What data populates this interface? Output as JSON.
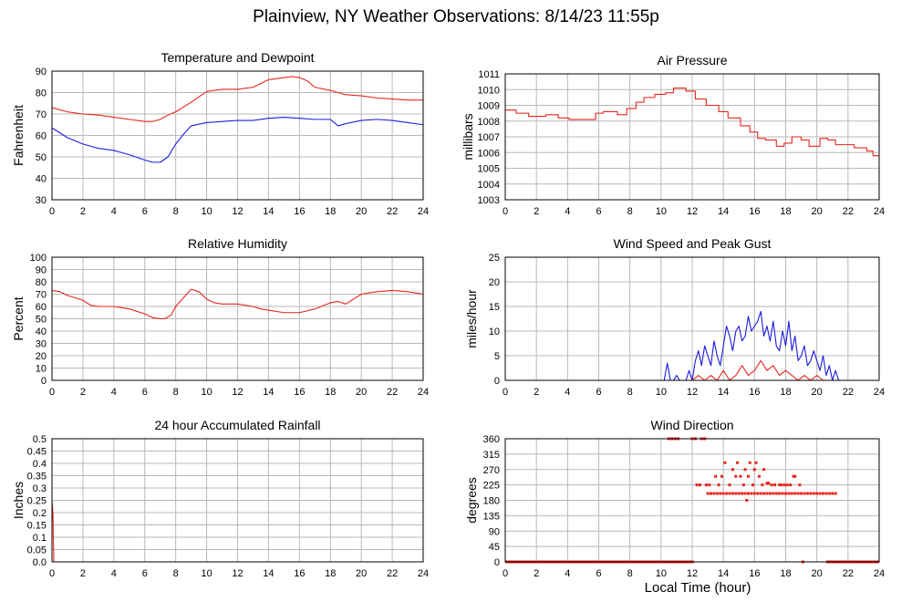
{
  "page": {
    "title": "Plainview, NY Weather Observations: 8/14/23 11:55p",
    "x_axis_caption": "Local Time (hour)"
  },
  "colors": {
    "grid": "#b8b8b8",
    "red": "#e8251c",
    "blue": "#1c1ce0"
  },
  "x_ticks": [
    "0",
    "2",
    "4",
    "6",
    "8",
    "10",
    "12",
    "14",
    "16",
    "18",
    "20",
    "22",
    "24"
  ],
  "chart_data": [
    {
      "id": "temp",
      "type": "line",
      "title": "Temperature and Dewpoint",
      "ylabel": "Fahrenheit",
      "xlabel": "",
      "xlim": [
        0,
        24
      ],
      "ylim": [
        30,
        90
      ],
      "y_ticks": [
        "30",
        "40",
        "50",
        "60",
        "70",
        "80",
        "90"
      ],
      "grid": true,
      "series": [
        {
          "color": "red",
          "x": [
            0,
            1,
            2,
            3,
            4,
            5,
            6,
            6.5,
            7,
            7.5,
            8,
            9,
            10,
            11,
            12,
            13,
            14,
            15,
            15.5,
            16,
            16.5,
            17,
            18,
            19,
            20,
            21,
            22,
            23,
            24
          ],
          "y": [
            73,
            71,
            70,
            69.5,
            68.5,
            67.5,
            66.5,
            66.5,
            67.5,
            69.5,
            71,
            75.5,
            80.5,
            81.5,
            81.5,
            82.5,
            86,
            87,
            87.5,
            87,
            85.5,
            82.5,
            81,
            79,
            78.5,
            77.5,
            77,
            76.5,
            76.5
          ]
        },
        {
          "color": "blue",
          "x": [
            0,
            1,
            2,
            3,
            4,
            5,
            6,
            6.5,
            7,
            7.5,
            8,
            8.5,
            9,
            10,
            11,
            12,
            13,
            14,
            15,
            16,
            17,
            18,
            18.5,
            19,
            20,
            21,
            22,
            23,
            24
          ],
          "y": [
            63.5,
            59,
            56,
            54,
            53,
            51,
            48.5,
            47.5,
            47.5,
            50,
            56,
            60.5,
            64.5,
            66,
            66.5,
            67,
            67,
            68,
            68.5,
            68,
            67.5,
            67.5,
            64.5,
            65.5,
            67,
            67.5,
            67,
            66,
            65
          ]
        }
      ]
    },
    {
      "id": "pressure",
      "type": "line",
      "title": "Air Pressure",
      "ylabel": "millibars",
      "xlabel": "",
      "xlim": [
        0,
        24
      ],
      "ylim": [
        1003,
        1011
      ],
      "y_ticks": [
        "1003",
        "1004",
        "1005",
        "1006",
        "1007",
        "1008",
        "1009",
        "1010",
        "1011"
      ],
      "grid": true,
      "series": [
        {
          "color": "red",
          "step": true,
          "x": [
            0,
            0.7,
            1.5,
            2.6,
            3.4,
            4.1,
            5.8,
            6.3,
            7.2,
            7.8,
            8.4,
            8.9,
            9.6,
            10.3,
            10.8,
            11.6,
            12.2,
            12.9,
            13.7,
            14.3,
            15.1,
            15.7,
            16.2,
            16.7,
            17.4,
            17.9,
            18.4,
            19.0,
            19.5,
            20.2,
            20.7,
            21.2,
            21.8,
            22.4,
            23.2,
            23.6,
            24
          ],
          "y": [
            1008.7,
            1008.5,
            1008.3,
            1008.4,
            1008.2,
            1008.1,
            1008.5,
            1008.6,
            1008.4,
            1008.8,
            1009.2,
            1009.5,
            1009.7,
            1009.8,
            1010.1,
            1009.9,
            1009.4,
            1009.0,
            1008.6,
            1008.2,
            1007.7,
            1007.3,
            1006.9,
            1006.8,
            1006.4,
            1006.6,
            1007.0,
            1006.8,
            1006.4,
            1006.9,
            1006.8,
            1006.5,
            1006.5,
            1006.3,
            1006.1,
            1005.8,
            1005.8
          ]
        }
      ]
    },
    {
      "id": "humidity",
      "type": "line",
      "title": "Relative Humidity",
      "ylabel": "Percent",
      "xlabel": "",
      "xlim": [
        0,
        24
      ],
      "ylim": [
        0,
        100
      ],
      "y_ticks": [
        "0",
        "10",
        "20",
        "30",
        "40",
        "50",
        "60",
        "70",
        "80",
        "90",
        "100"
      ],
      "grid": true,
      "series": [
        {
          "color": "red",
          "x": [
            0,
            0.5,
            1,
            2,
            2.5,
            3,
            4,
            5,
            6,
            6.5,
            7,
            7.3,
            7.7,
            8,
            8.5,
            9,
            9.5,
            10,
            10.5,
            11,
            12,
            13,
            13.5,
            14,
            15,
            16,
            17,
            18,
            18.5,
            19,
            20,
            21,
            22,
            23,
            24
          ],
          "y": [
            73,
            72,
            69,
            65,
            61,
            60,
            60,
            58,
            54,
            51,
            50,
            50,
            53,
            60,
            67,
            74,
            72,
            66,
            63,
            62,
            62,
            60,
            58,
            57,
            55,
            55,
            58,
            63,
            64,
            62,
            70,
            72,
            73,
            72,
            70
          ]
        }
      ]
    },
    {
      "id": "wind",
      "type": "line",
      "title": "Wind Speed and Peak Gust",
      "ylabel": "miles/hour",
      "xlabel": "",
      "xlim": [
        0,
        24
      ],
      "ylim": [
        0,
        25
      ],
      "y_ticks": [
        "0",
        "5",
        "10",
        "15",
        "20",
        "25"
      ],
      "grid": true,
      "series": [
        {
          "color": "blue",
          "x": [
            0,
            10.2,
            10.4,
            10.6,
            10.8,
            11.0,
            11.2,
            11.4,
            11.6,
            11.8,
            12.0,
            12.2,
            12.4,
            12.6,
            12.8,
            13.0,
            13.2,
            13.4,
            13.6,
            13.8,
            14.0,
            14.2,
            14.4,
            14.6,
            14.8,
            15.0,
            15.2,
            15.4,
            15.6,
            15.8,
            16.0,
            16.2,
            16.4,
            16.6,
            16.8,
            17.0,
            17.2,
            17.4,
            17.6,
            17.8,
            18.0,
            18.2,
            18.4,
            18.6,
            18.8,
            19.0,
            19.2,
            19.4,
            19.6,
            19.8,
            20.0,
            20.2,
            20.4,
            20.6,
            20.8,
            21.0,
            21.2,
            21.4,
            24
          ],
          "y": [
            0,
            0,
            3.5,
            0,
            0,
            1,
            0,
            0,
            0,
            2,
            0,
            4,
            6,
            3,
            7,
            5,
            3,
            8,
            5,
            3,
            7,
            11,
            9,
            6,
            10,
            11,
            8,
            9,
            13,
            10,
            11,
            12,
            14,
            9,
            11,
            8,
            12,
            7,
            6,
            10,
            7,
            12,
            6,
            9,
            4,
            5,
            7,
            3,
            4,
            6,
            4,
            2,
            5,
            1,
            3,
            0,
            2,
            0,
            0
          ]
        },
        {
          "color": "red",
          "x": [
            0,
            12.0,
            12.4,
            12.8,
            13.2,
            13.6,
            14.0,
            14.4,
            14.8,
            15.2,
            15.6,
            16.0,
            16.4,
            16.8,
            17.2,
            17.6,
            18.0,
            18.4,
            18.8,
            19.2,
            19.6,
            20.0,
            20.4,
            21.0,
            24
          ],
          "y": [
            0,
            0,
            1,
            0,
            1,
            0,
            2,
            0,
            1,
            3,
            1,
            2,
            4,
            2,
            3,
            1,
            2,
            1,
            0,
            1,
            0,
            1,
            0,
            0,
            0
          ]
        }
      ]
    },
    {
      "id": "rain",
      "type": "line",
      "title": "24 hour Accumulated Rainfall",
      "ylabel": "Inches",
      "xlabel": "",
      "xlim": [
        0,
        24
      ],
      "ylim": [
        0,
        0.5
      ],
      "y_ticks": [
        "0.0",
        "0.05",
        "0.1",
        "0.15",
        "0.2",
        "0.25",
        "0.3",
        "0.35",
        "0.4",
        "0.45",
        "0.5"
      ],
      "grid": true,
      "series": [
        {
          "color": "red",
          "x": [
            0,
            0.06,
            0.12,
            24
          ],
          "y": [
            0.25,
            0.2,
            0,
            0
          ]
        }
      ]
    },
    {
      "id": "direction",
      "type": "scatter",
      "title": "Wind Direction",
      "ylabel": "degrees",
      "xlabel": "Local Time (hour)",
      "xlim": [
        0,
        24
      ],
      "ylim": [
        0,
        360
      ],
      "y_ticks": [
        "0",
        "45",
        "90",
        "135",
        "180",
        "225",
        "270",
        "315",
        "360"
      ],
      "grid": true,
      "series": [
        {
          "color": "red",
          "x": [
            10.5,
            10.7,
            10.9,
            11.1,
            12.0,
            12.2,
            12.6,
            12.8,
            13.0,
            13.2,
            13.4,
            13.6,
            13.8,
            14.0,
            14.2,
            14.4,
            14.6,
            14.8,
            15.0,
            15.2,
            15.4,
            15.6,
            15.8,
            16.0,
            16.2,
            16.4,
            16.6,
            16.8,
            17.0,
            17.2,
            17.4,
            17.6,
            17.8,
            18.0,
            18.2,
            18.4,
            18.6,
            18.8,
            19.0,
            19.2,
            19.4,
            19.6,
            19.8,
            20.0,
            20.2,
            20.4,
            20.6,
            20.8,
            21.0,
            21.2,
            13.9,
            14.1,
            14.6,
            15.1,
            15.4,
            15.7,
            16.0,
            16.3,
            16.6,
            16.9,
            17.6,
            17.9,
            18.3,
            18.6,
            18.9,
            12.3,
            12.5,
            13.1,
            13.5,
            14.4,
            15.3,
            15.9,
            16.5,
            17.3,
            17.7,
            18.1,
            14.9,
            15.6,
            16.8,
            12.9,
            13.7,
            14.8,
            16.1,
            17.1,
            18.5,
            15.5,
            19.1
          ],
          "y": [
            360,
            360,
            360,
            360,
            360,
            360,
            360,
            360,
            200,
            200,
            200,
            200,
            200,
            200,
            200,
            200,
            200,
            200,
            200,
            200,
            200,
            200,
            200,
            200,
            200,
            200,
            200,
            200,
            200,
            200,
            200,
            200,
            200,
            200,
            200,
            200,
            200,
            200,
            200,
            200,
            200,
            200,
            200,
            200,
            200,
            200,
            200,
            200,
            200,
            200,
            250,
            290,
            270,
            250,
            270,
            290,
            270,
            250,
            270,
            230,
            225,
            225,
            225,
            250,
            225,
            225,
            225,
            225,
            250,
            225,
            225,
            225,
            225,
            225,
            225,
            225,
            290,
            250,
            230,
            225,
            225,
            250,
            290,
            225,
            250,
            180,
            0
          ]
        },
        {
          "color": "red",
          "line": true,
          "x": [
            0,
            10.3
          ],
          "y": [
            0,
            0
          ]
        },
        {
          "color": "red",
          "line": true,
          "x": [
            10.3,
            12.1
          ],
          "y": [
            0,
            0
          ]
        },
        {
          "color": "red",
          "line": true,
          "x": [
            20.6,
            24
          ],
          "y": [
            0,
            0
          ]
        }
      ]
    }
  ]
}
